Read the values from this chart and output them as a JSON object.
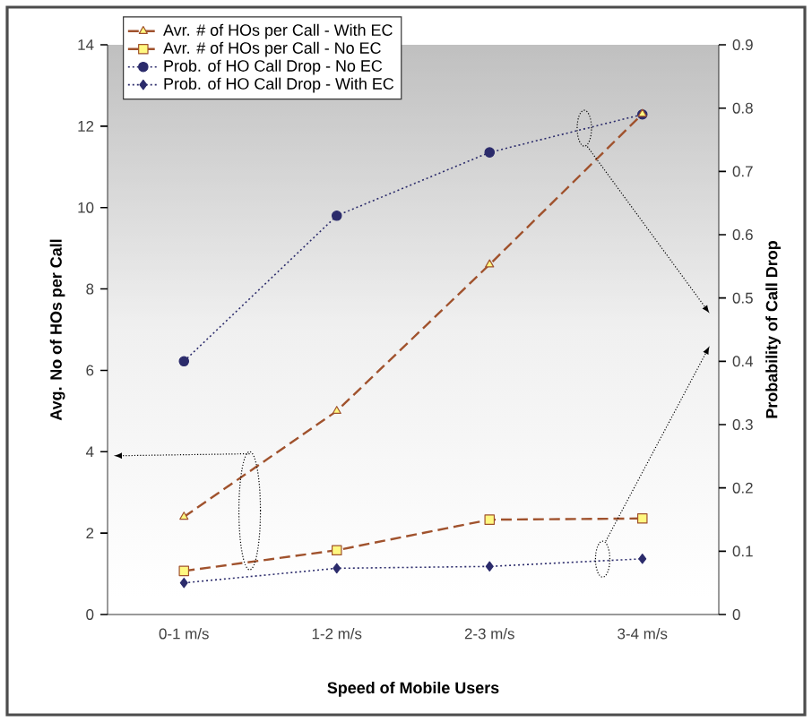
{
  "chart_data": {
    "type": "line",
    "xlabel": "Speed of Mobile Users",
    "ylabel": "Avg. No of HOs per Call",
    "y2label": "Probability of Call Drop",
    "categories": [
      "0-1 m/s",
      "1-2 m/s",
      "2-3 m/s",
      "3-4 m/s"
    ],
    "ylim": [
      0,
      14
    ],
    "yticks": [
      0,
      2,
      4,
      6,
      8,
      10,
      12,
      14
    ],
    "y2lim": [
      0,
      0.9
    ],
    "y2ticks": [
      0,
      0.1,
      0.2,
      0.3,
      0.4,
      0.5,
      0.6,
      0.7,
      0.8,
      0.9
    ],
    "legend": "top left",
    "series": [
      {
        "name": "Avr. # of HOs per Call - With EC",
        "color": "#a0522d",
        "marker": "triangle",
        "line_style": "dashed",
        "values": [
          2.4,
          5.0,
          8.6,
          12.3
        ]
      },
      {
        "name": "Avr. # of HOs per Call - No EC",
        "color": "#a0522d",
        "marker": "square",
        "line_style": "dashed",
        "values": [
          1.07,
          1.58,
          2.33,
          2.36
        ]
      },
      {
        "name": "Prob. of HO Call Drop - No EC",
        "color": "#2b2b6b",
        "marker": "circle",
        "line_style": "dotted",
        "axis": "y2",
        "values": [
          0.4,
          0.63,
          0.73,
          0.79
        ]
      },
      {
        "name": "Prob. of HO Call Drop - With EC",
        "color": "#2b2b6b",
        "marker": "diamond",
        "line_style": "dotted",
        "axis": "y2",
        "values": [
          0.05,
          0.073,
          0.076,
          0.088
        ]
      }
    ]
  }
}
